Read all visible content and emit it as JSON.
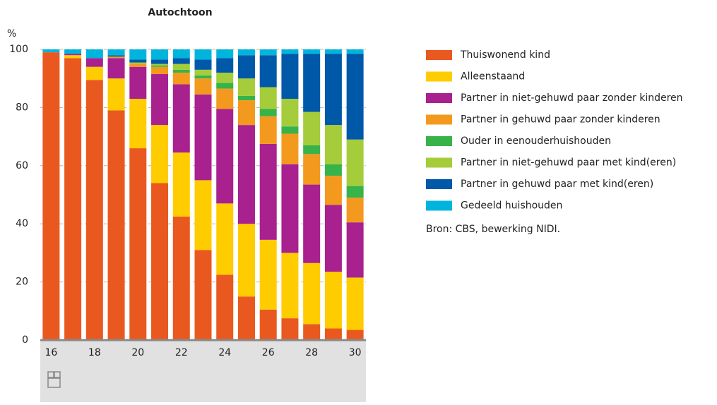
{
  "chart_data": {
    "type": "stacked_bar",
    "title": "Autochtoon",
    "y_label": "%",
    "source": "Bron: CBS, bewerking NIDI.",
    "categories": [
      "16",
      null,
      "18",
      null,
      "20",
      null,
      "22",
      null,
      "24",
      null,
      "26",
      null,
      "28",
      null,
      "30"
    ],
    "ylim": [
      0,
      100
    ],
    "yticks": [
      0,
      20,
      40,
      60,
      80,
      100
    ],
    "grid": true,
    "series": [
      {
        "name": "Thuiswonend kind",
        "color": "#e9591f",
        "values": [
          99,
          97,
          89.5,
          79,
          66,
          54,
          42.5,
          31,
          22.5,
          15,
          10.5,
          7.5,
          5.5,
          4,
          3.5
        ]
      },
      {
        "name": "Alleenstaand",
        "color": "#ffcc00",
        "values": [
          0,
          1,
          4.5,
          11,
          17,
          20,
          22,
          24,
          24.5,
          25,
          24,
          22.5,
          21,
          19.5,
          18
        ]
      },
      {
        "name": "Partner in niet-gehuwd paar zonder kinderen",
        "color": "#a8218e",
        "values": [
          0,
          0.5,
          3,
          7,
          11,
          17.5,
          23.5,
          29.5,
          32.5,
          34,
          33,
          30.5,
          27,
          23,
          19
        ]
      },
      {
        "name": "Partner in gehuwd paar zonder kinderen",
        "color": "#f39a1e",
        "values": [
          0,
          0,
          0,
          0.5,
          1,
          2.5,
          4,
          5.5,
          7,
          8.5,
          9.5,
          10.5,
          10.5,
          10,
          8.5
        ]
      },
      {
        "name": "Ouder in eenouderhuishouden",
        "color": "#37b34a",
        "values": [
          0,
          0,
          0,
          0,
          0,
          0.5,
          1,
          1,
          2,
          1.5,
          2.5,
          2.5,
          3,
          4,
          4
        ]
      },
      {
        "name": "Partner in niet-gehuwd paar met kind(eren)",
        "color": "#a5cc3a",
        "values": [
          0,
          0,
          0,
          0,
          0.5,
          0.5,
          2,
          2,
          3.5,
          6,
          7.5,
          9.5,
          11.5,
          13.5,
          16
        ]
      },
      {
        "name": "Partner in gehuwd paar met kind(eren)",
        "color": "#0058a8",
        "values": [
          0,
          0,
          0,
          0.5,
          1,
          1.5,
          2,
          3.5,
          5,
          8,
          11,
          15.5,
          20,
          24.5,
          29.5
        ]
      },
      {
        "name": "Gedeeld huishouden",
        "color": "#00b5dd",
        "values": [
          1,
          1.5,
          3,
          2,
          3.5,
          3.5,
          3,
          3.5,
          3,
          2,
          2,
          1.5,
          1.5,
          1.5,
          1.5
        ]
      }
    ]
  }
}
